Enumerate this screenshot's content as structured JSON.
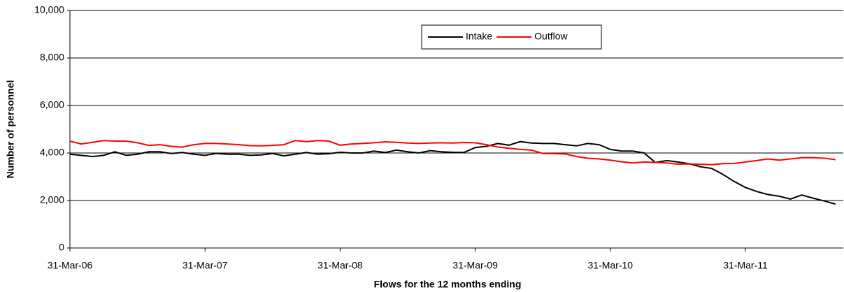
{
  "chart_data": {
    "type": "line",
    "x_label": "Flows for the 12 months ending",
    "y_label": "Number of personnel",
    "categories": [
      "31-Mar-06",
      null,
      null,
      null,
      null,
      null,
      null,
      null,
      null,
      null,
      null,
      null,
      "31-Mar-07",
      null,
      null,
      null,
      null,
      null,
      null,
      null,
      null,
      null,
      null,
      null,
      "31-Mar-08",
      null,
      null,
      null,
      null,
      null,
      null,
      null,
      null,
      null,
      null,
      null,
      "31-Mar-09",
      null,
      null,
      null,
      null,
      null,
      null,
      null,
      null,
      null,
      null,
      null,
      "31-Mar-10",
      null,
      null,
      null,
      null,
      null,
      null,
      null,
      null,
      null,
      null,
      null,
      "31-Mar-11",
      null,
      null,
      null,
      null,
      null,
      null,
      null,
      null
    ],
    "series": [
      {
        "name": "Intake",
        "color": "#000000",
        "values": [
          3950,
          3900,
          3850,
          3900,
          4050,
          3900,
          3950,
          4050,
          4050,
          3980,
          4020,
          3950,
          3900,
          3980,
          3950,
          3950,
          3900,
          3920,
          3980,
          3880,
          3950,
          4020,
          3950,
          3970,
          4030,
          4000,
          4000,
          4080,
          4020,
          4120,
          4050,
          4000,
          4100,
          4050,
          4030,
          4020,
          4230,
          4280,
          4400,
          4330,
          4480,
          4420,
          4400,
          4400,
          4350,
          4300,
          4400,
          4350,
          4150,
          4080,
          4080,
          4000,
          3600,
          3680,
          3620,
          3550,
          3420,
          3350,
          3100,
          2800,
          2550,
          2380,
          2250,
          2180,
          2060,
          2230,
          2100,
          1980,
          1850
        ]
      },
      {
        "name": "Outflow",
        "color": "#ff0000",
        "values": [
          4500,
          4380,
          4450,
          4520,
          4500,
          4500,
          4430,
          4320,
          4350,
          4280,
          4250,
          4350,
          4400,
          4400,
          4380,
          4350,
          4310,
          4300,
          4320,
          4350,
          4520,
          4480,
          4520,
          4500,
          4330,
          4380,
          4400,
          4430,
          4470,
          4450,
          4420,
          4400,
          4420,
          4430,
          4420,
          4440,
          4430,
          4350,
          4250,
          4200,
          4150,
          4120,
          3980,
          3970,
          3960,
          3850,
          3780,
          3750,
          3700,
          3630,
          3580,
          3620,
          3600,
          3580,
          3530,
          3540,
          3520,
          3510,
          3550,
          3560,
          3620,
          3680,
          3750,
          3700,
          3750,
          3800,
          3800,
          3780,
          3720
        ]
      }
    ],
    "ylim": [
      0,
      10000
    ],
    "yticks": [
      0,
      {
        "value": 2000,
        "label": "2,000"
      },
      {
        "value": 4000,
        "label": "4,000"
      },
      {
        "value": 6000,
        "label": "6,000"
      },
      {
        "value": 8000,
        "label": "8,000"
      },
      {
        "value": 10000,
        "label": "10,000"
      }
    ],
    "grid": true,
    "legend": "top"
  }
}
